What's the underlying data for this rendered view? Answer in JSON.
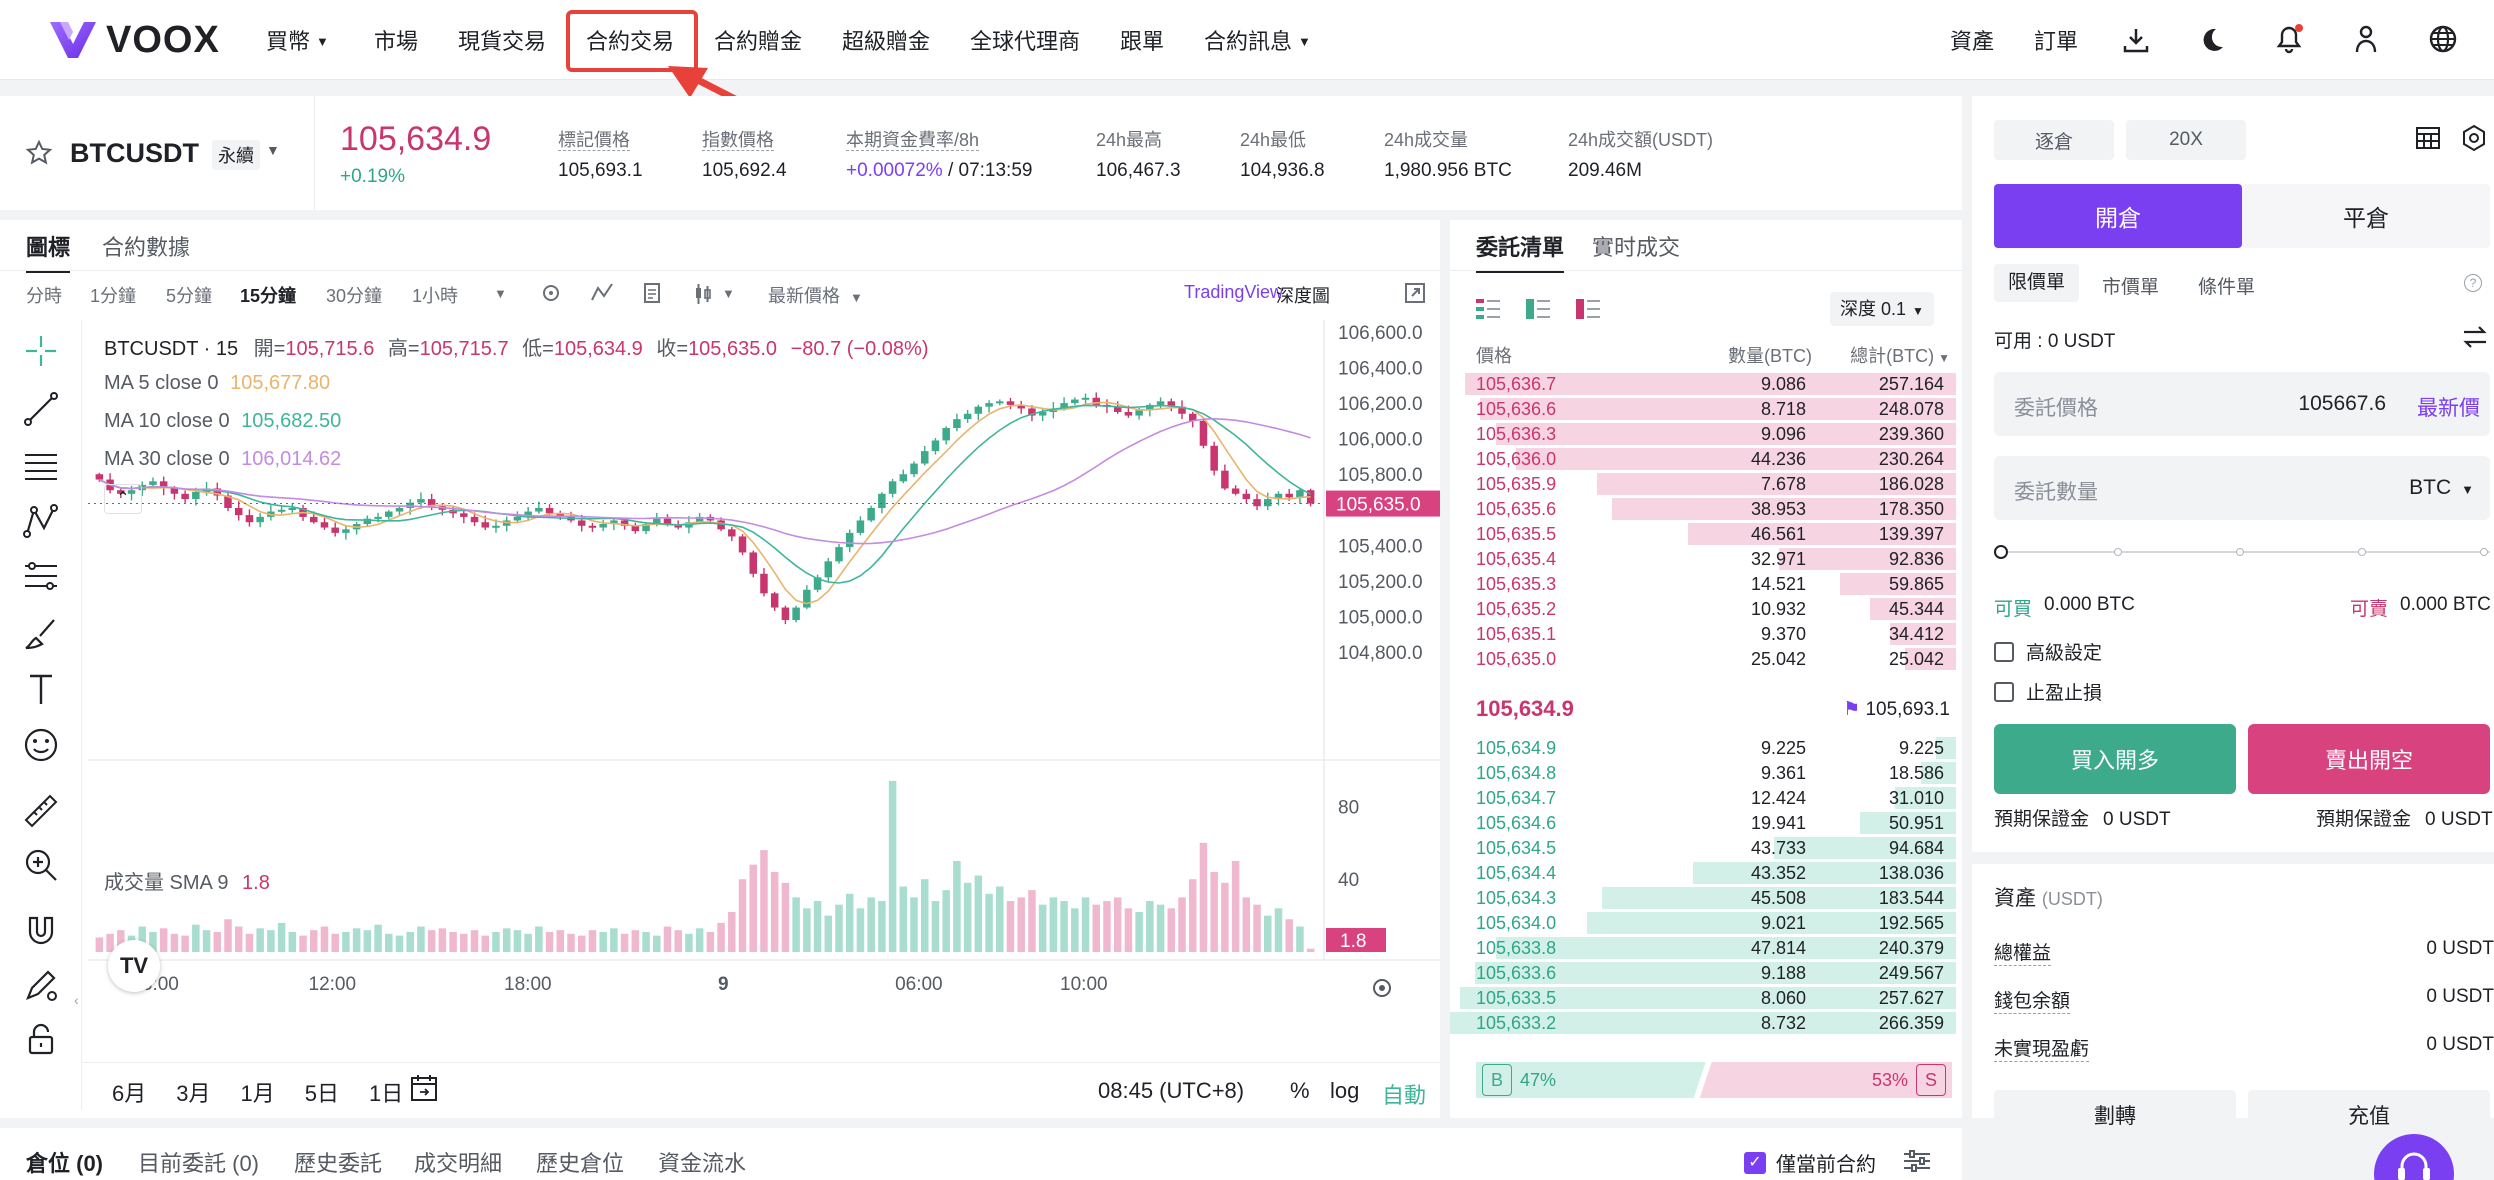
{
  "nav": {
    "brand": "VOOX",
    "items": [
      {
        "label": "買幣",
        "caret": true
      },
      {
        "label": "市場"
      },
      {
        "label": "現貨交易"
      },
      {
        "label": "合約交易"
      },
      {
        "label": "合約贈金"
      },
      {
        "label": "超級贈金"
      },
      {
        "label": "全球代理商"
      },
      {
        "label": "跟單"
      },
      {
        "label": "合約訊息",
        "caret": true
      }
    ],
    "right": {
      "assets": "資產",
      "orders": "訂單"
    },
    "icons": [
      "download-icon",
      "moon-icon",
      "bell-icon",
      "user-icon",
      "globe-icon"
    ],
    "highlight_color": "#e8413a"
  },
  "ticker": {
    "symbol": "BTCUSDT",
    "type": "永續",
    "price": "105,634.9",
    "change": "+0.19%",
    "stats": [
      {
        "label": "標記價格",
        "value": "105,693.1",
        "underline": true
      },
      {
        "label": "指數價格",
        "value": "105,692.4",
        "underline": true
      },
      {
        "label": "本期資金費率/8h",
        "value_a": "+0.00072%",
        "value_b": " / 07:13:59",
        "underline": true
      },
      {
        "label": "24h最高",
        "value": "106,467.3"
      },
      {
        "label": "24h最低",
        "value": "104,936.8"
      },
      {
        "label": "24h成交量",
        "value": "1,980.956 BTC"
      },
      {
        "label": "24h成交額(USDT)",
        "value": "209.46M"
      }
    ]
  },
  "chart_panel": {
    "tabs": [
      "圖標",
      "合約數據"
    ],
    "timeframes": [
      "分時",
      "1分鐘",
      "5分鐘",
      "15分鐘",
      "30分鐘",
      "1小時"
    ],
    "active_tf": "15分鐘",
    "latest_price_label": "最新價格",
    "tradingview": "TradingView",
    "depth": "深度圖",
    "legend": {
      "title": "BTCUSDT · 15",
      "o_label": "開=",
      "o": "105,715.6",
      "h_label": "高=",
      "h": "105,715.7",
      "l_label": "低=",
      "l": "105,634.9",
      "c_label": "收=",
      "c": "105,635.0",
      "chg": "−80.7 (−0.08%)",
      "ma5": "MA 5 close 0",
      "ma5_val": "105,677.80",
      "ma10": "MA 10 close 0",
      "ma10_val": "105,682.50",
      "ma30": "MA 30 close 0",
      "ma30_val": "106,014.62"
    },
    "volume_label": "成交量 SMA 9",
    "volume_val": "1.8",
    "price_axis": [
      "106,600.0",
      "106,400.0",
      "106,200.0",
      "106,000.0",
      "105,800.0",
      "105,400.0",
      "105,200.0",
      "105,000.0",
      "104,800.0"
    ],
    "price_tag": "105,635.0",
    "volume_axis": [
      "80",
      "40"
    ],
    "volume_tag": "1.8",
    "time_axis": [
      "06:00",
      "12:00",
      "18:00",
      "9",
      "06:00",
      "10:00"
    ],
    "ranges": [
      "6月",
      "3月",
      "1月",
      "5日",
      "1日"
    ],
    "clock": "08:45 (UTC+8)",
    "pct": "%",
    "log": "log",
    "auto": "自動",
    "colors": {
      "up": "#3daa8c",
      "down": "#c9356f",
      "ma5": "#e9b46d",
      "ma10": "#3fb59b",
      "ma30": "#c48be0"
    }
  },
  "chart_data": {
    "type": "candlestick",
    "title": "BTCUSDT · 15",
    "interval": "15分鐘",
    "ylim": [
      104800,
      106600
    ],
    "yticks": [
      106600,
      106400,
      106200,
      106000,
      105800,
      105400,
      105200,
      105000,
      104800
    ],
    "xticks": [
      "06:00",
      "12:00",
      "18:00",
      "9",
      "06:00",
      "10:00"
    ],
    "last": {
      "open": 105715.6,
      "high": 105715.7,
      "low": 105634.9,
      "close": 105635.0,
      "change": -80.7,
      "change_pct": -0.08
    },
    "series": [
      {
        "name": "MA 5 close 0",
        "last": 105677.8
      },
      {
        "name": "MA 10 close 0",
        "last": 105682.5
      },
      {
        "name": "MA 30 close 0",
        "last": 106014.62
      }
    ],
    "close": [
      105770,
      105710,
      105690,
      105710,
      105740,
      105760,
      105720,
      105690,
      105660,
      105700,
      105720,
      105680,
      105610,
      105570,
      105530,
      105560,
      105590,
      105600,
      105610,
      105560,
      105530,
      105500,
      105470,
      105490,
      105520,
      105550,
      105560,
      105590,
      105610,
      105640,
      105660,
      105620,
      105600,
      105580,
      105560,
      105530,
      105500,
      105510,
      105540,
      105560,
      105590,
      105610,
      105580,
      105560,
      105540,
      105510,
      105500,
      105520,
      105540,
      105510,
      105480,
      105520,
      105550,
      105520,
      105500,
      105530,
      105560,
      105540,
      105490,
      105450,
      105360,
      105240,
      105130,
      105050,
      104980,
      105050,
      105150,
      105220,
      105310,
      105390,
      105470,
      105540,
      105610,
      105690,
      105760,
      105800,
      105860,
      105930,
      105990,
      106060,
      106110,
      106140,
      106180,
      106200,
      106210,
      106190,
      106170,
      106130,
      106150,
      106170,
      106200,
      106220,
      106230,
      106190,
      106180,
      106150,
      106130,
      106160,
      106190,
      106210,
      106180,
      106140,
      106100,
      105960,
      105820,
      105720,
      105690,
      105660,
      105620,
      105660,
      105690,
      105670,
      105710,
      105635
    ],
    "volume": [
      8,
      10,
      12,
      9,
      14,
      11,
      13,
      10,
      9,
      15,
      12,
      11,
      18,
      14,
      10,
      13,
      12,
      16,
      11,
      9,
      12,
      14,
      10,
      11,
      13,
      12,
      15,
      10,
      9,
      11,
      14,
      12,
      13,
      11,
      10,
      12,
      9,
      11,
      13,
      12,
      10,
      14,
      11,
      12,
      10,
      9,
      12,
      11,
      13,
      10,
      12,
      11,
      9,
      14,
      12,
      10,
      13,
      11,
      16,
      22,
      40,
      48,
      56,
      44,
      38,
      30,
      24,
      28,
      20,
      26,
      32,
      24,
      30,
      28,
      94,
      36,
      30,
      40,
      28,
      34,
      50,
      38,
      42,
      32,
      36,
      28,
      30,
      34,
      26,
      30,
      28,
      24,
      30,
      26,
      28,
      30,
      24,
      22,
      28,
      26,
      24,
      30,
      40,
      60,
      44,
      38,
      50,
      30,
      26,
      20,
      24,
      18,
      14,
      1.8
    ]
  },
  "orderbook": {
    "tabs": [
      "委託清單",
      "實时成交"
    ],
    "depth_label": "深度 0.1",
    "headers": {
      "price": "價格",
      "qty": "數量(BTC)",
      "total": "總計(BTC)"
    },
    "asks": [
      {
        "p": "105,636.7",
        "q": "9.086",
        "t": "257.164",
        "f": 0.97
      },
      {
        "p": "105,636.6",
        "q": "8.718",
        "t": "248.078",
        "f": 0.94
      },
      {
        "p": "105,636.3",
        "q": "9.096",
        "t": "239.360",
        "f": 0.91
      },
      {
        "p": "105,636.0",
        "q": "44.236",
        "t": "230.264",
        "f": 0.87
      },
      {
        "p": "105,635.9",
        "q": "7.678",
        "t": "186.028",
        "f": 0.71
      },
      {
        "p": "105,635.6",
        "q": "38.953",
        "t": "178.350",
        "f": 0.68
      },
      {
        "p": "105,635.5",
        "q": "46.561",
        "t": "139.397",
        "f": 0.53
      },
      {
        "p": "105,635.4",
        "q": "32.971",
        "t": "92.836",
        "f": 0.35
      },
      {
        "p": "105,635.3",
        "q": "14.521",
        "t": "59.865",
        "f": 0.23
      },
      {
        "p": "105,635.2",
        "q": "10.932",
        "t": "45.344",
        "f": 0.17
      },
      {
        "p": "105,635.1",
        "q": "9.370",
        "t": "34.412",
        "f": 0.13
      },
      {
        "p": "105,635.0",
        "q": "25.042",
        "t": "25.042",
        "f": 0.1
      }
    ],
    "mid_price": "105,634.9",
    "mark_price": "105,693.1",
    "bids": [
      {
        "p": "105,634.9",
        "q": "9.225",
        "t": "9.225",
        "f": 0.04
      },
      {
        "p": "105,634.8",
        "q": "9.361",
        "t": "18.586",
        "f": 0.07
      },
      {
        "p": "105,634.7",
        "q": "12.424",
        "t": "31.010",
        "f": 0.12
      },
      {
        "p": "105,634.6",
        "q": "19.941",
        "t": "50.951",
        "f": 0.19
      },
      {
        "p": "105,634.5",
        "q": "43.733",
        "t": "94.684",
        "f": 0.36
      },
      {
        "p": "105,634.4",
        "q": "43.352",
        "t": "138.036",
        "f": 0.52
      },
      {
        "p": "105,634.3",
        "q": "45.508",
        "t": "183.544",
        "f": 0.7
      },
      {
        "p": "105,634.0",
        "q": "9.021",
        "t": "192.565",
        "f": 0.73
      },
      {
        "p": "105,633.8",
        "q": "47.814",
        "t": "240.379",
        "f": 0.91
      },
      {
        "p": "105,633.6",
        "q": "9.188",
        "t": "249.567",
        "f": 0.95
      },
      {
        "p": "105,633.5",
        "q": "8.060",
        "t": "257.627",
        "f": 0.98
      },
      {
        "p": "105,633.2",
        "q": "8.732",
        "t": "266.359",
        "f": 1.0
      }
    ],
    "buy_ratio": "47%",
    "sell_ratio": "53%",
    "buy_fraction": 0.47,
    "b": "B",
    "s": "S"
  },
  "form": {
    "margin_mode": "逐倉",
    "leverage": "20X",
    "open": "開倉",
    "close": "平倉",
    "order_types": [
      "限價單",
      "市價單",
      "條件單"
    ],
    "available": "可用 : 0 USDT",
    "price_label": "委託價格",
    "price_value": "105667.6",
    "latest": "最新價",
    "qty_label": "委託數量",
    "qty_unit": "BTC",
    "can_buy_label": "可買",
    "can_buy": "0.000 BTC",
    "can_sell_label": "可賣",
    "can_sell": "0.000 BTC",
    "advanced": "高級設定",
    "tpsl": "止盈止損",
    "buy_long": "買入開多",
    "sell_short": "賣出開空",
    "margin_label": "預期保證金",
    "margin_val": "0 USDT",
    "assets_title": "資產",
    "assets_unit": "(USDT)",
    "assets": [
      {
        "label": "總權益",
        "value": "0 USDT"
      },
      {
        "label": "錢包余額",
        "value": "0 USDT"
      },
      {
        "label": "未實現盈虧",
        "value": "0 USDT"
      }
    ],
    "transfer": "劃轉",
    "deposit": "充值",
    "colors": {
      "primary": "#7b3ff2",
      "buy": "#3daa8c",
      "sell": "#d8427f"
    }
  },
  "bottom": {
    "tabs": [
      "倉位 (0)",
      "目前委託 (0)",
      "歷史委託",
      "成交明細",
      "歷史倉位",
      "資金流水"
    ],
    "only_current": "僅當前合約"
  }
}
